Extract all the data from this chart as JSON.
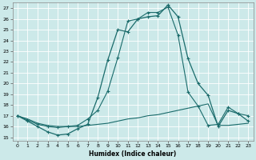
{
  "xlabel": "Humidex (Indice chaleur)",
  "xlim": [
    -0.5,
    23.5
  ],
  "ylim": [
    14.7,
    27.5
  ],
  "yticks": [
    15,
    16,
    17,
    18,
    19,
    20,
    21,
    22,
    23,
    24,
    25,
    26,
    27
  ],
  "xticks": [
    0,
    1,
    2,
    3,
    4,
    5,
    6,
    7,
    8,
    9,
    10,
    11,
    12,
    13,
    14,
    15,
    16,
    17,
    18,
    19,
    20,
    21,
    22,
    23
  ],
  "bg_color": "#cce9e9",
  "grid_color": "#b0d8d8",
  "line_color": "#1a6b6b",
  "line1_x": [
    0,
    1,
    2,
    3,
    4,
    5,
    6,
    7,
    8,
    9,
    10,
    11,
    12,
    13,
    14,
    15,
    16,
    17,
    18,
    19,
    20,
    21,
    22,
    23
  ],
  "line1_y": [
    17.0,
    16.5,
    16.0,
    15.5,
    15.2,
    15.3,
    15.8,
    16.2,
    18.7,
    22.2,
    25.0,
    24.8,
    26.0,
    26.2,
    26.3,
    27.3,
    26.2,
    22.3,
    20.0,
    18.9,
    16.0,
    17.5,
    17.2,
    16.5
  ],
  "line2_x": [
    0,
    1,
    2,
    3,
    4,
    5,
    6,
    7,
    8,
    9,
    10,
    11,
    12,
    13,
    14,
    15,
    16,
    17,
    18,
    19,
    20,
    21,
    22,
    23
  ],
  "line2_y": [
    17.0,
    16.7,
    16.3,
    16.1,
    16.0,
    16.0,
    16.0,
    16.1,
    16.2,
    16.3,
    16.5,
    16.7,
    16.8,
    17.0,
    17.1,
    17.3,
    17.5,
    17.7,
    17.9,
    18.1,
    16.1,
    16.1,
    16.2,
    16.3
  ],
  "line3_x": [
    0,
    1,
    2,
    3,
    4,
    5,
    6,
    7,
    8,
    9,
    10,
    11,
    12,
    13,
    14,
    15,
    16,
    17,
    18,
    19,
    20,
    21,
    22,
    23
  ],
  "line3_y": [
    17.0,
    16.6,
    16.2,
    16.0,
    15.9,
    16.0,
    16.1,
    16.7,
    17.5,
    19.3,
    22.4,
    25.8,
    26.0,
    26.6,
    26.6,
    27.1,
    24.5,
    19.2,
    17.9,
    16.1,
    16.2,
    17.8,
    17.2,
    17.0
  ]
}
